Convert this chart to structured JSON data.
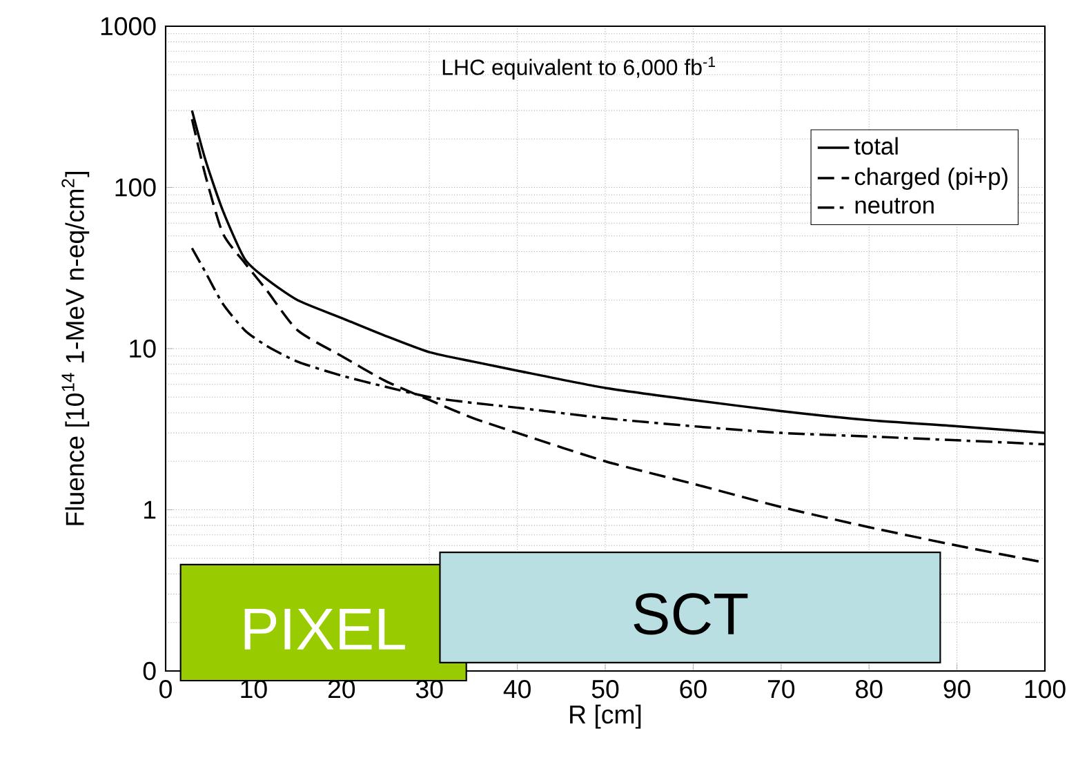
{
  "chart_data": {
    "type": "line",
    "xlabel": "R [cm]",
    "ylabel": "Fluence [10$^{14}$ 1-MeV n-eq/cm$^{2}$]",
    "annotations": [
      "LHC equivalent to 6,000 fb$^{-1}$"
    ],
    "x": [
      3,
      4.5,
      6.5,
      9,
      11.5,
      15,
      20,
      25,
      30,
      35,
      40,
      50,
      60,
      70,
      80,
      90,
      100
    ],
    "series": [
      {
        "name": "total",
        "color": "#000000",
        "line_style": "solid",
        "values": [
          300,
          150,
          72,
          36,
          27,
          20,
          15.5,
          12,
          9.5,
          8.3,
          7.3,
          5.7,
          4.8,
          4.1,
          3.6,
          3.3,
          3.0
        ]
      },
      {
        "name": "charged (pi+p)",
        "color": "#000000",
        "line_style": "dashed",
        "values": [
          265,
          120,
          52,
          34,
          23,
          13,
          9,
          6.3,
          4.8,
          3.7,
          3.0,
          2.0,
          1.45,
          1.04,
          0.78,
          0.6,
          0.47
        ]
      },
      {
        "name": "neutron",
        "color": "#000000",
        "line_style": "dashdot",
        "values": [
          42,
          30,
          19,
          13,
          10.4,
          8.3,
          6.8,
          5.8,
          5.0,
          4.6,
          4.3,
          3.7,
          3.3,
          3.0,
          2.85,
          2.7,
          2.55
        ]
      }
    ],
    "log": "y",
    "xlim": [
      0,
      100
    ],
    "ylim": [
      0.1,
      1000
    ],
    "xticks": [
      0,
      10,
      20,
      30,
      40,
      50,
      60,
      70,
      80,
      90,
      100
    ],
    "yticks": [
      {
        "value": 0.1,
        "label": "0"
      },
      1,
      10,
      100,
      1000
    ],
    "grid": true,
    "legend": "top right",
    "bands": [
      {
        "axis": "x",
        "from": 1.7,
        "to": 34.2,
        "label": "PIXEL",
        "color": "#99cc00"
      },
      {
        "axis": "x",
        "from": 31.2,
        "to": 88.1,
        "label": "SCT",
        "color": "#b9dfe3"
      }
    ]
  }
}
